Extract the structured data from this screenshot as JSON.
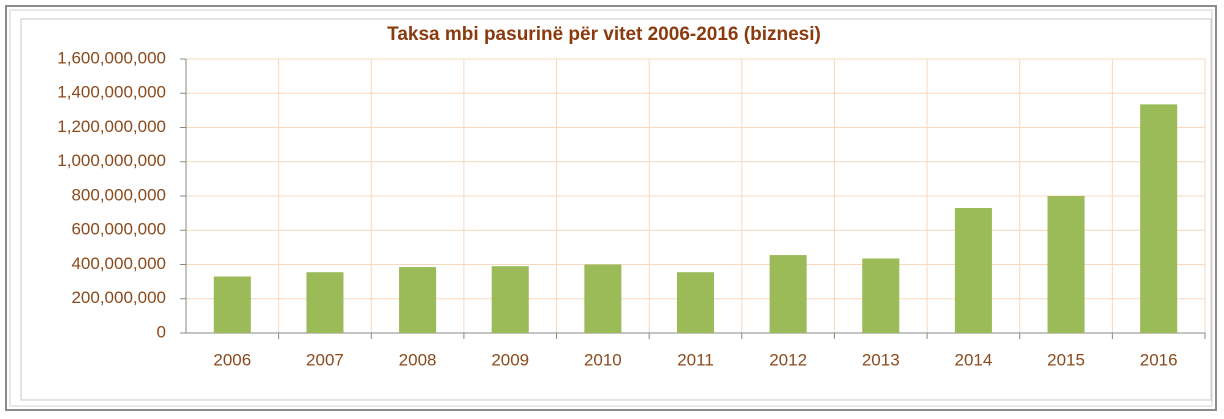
{
  "chart_data": {
    "type": "bar",
    "title": "Taksa mbi pasurinë për vitet 2006-2016 (biznesi)",
    "categories": [
      "2006",
      "2007",
      "2008",
      "2009",
      "2010",
      "2011",
      "2012",
      "2013",
      "2014",
      "2015",
      "2016"
    ],
    "values": [
      330000000,
      355000000,
      385000000,
      390000000,
      400000000,
      355000000,
      455000000,
      435000000,
      730000000,
      800000000,
      1335000000
    ],
    "color": "#9bbb59",
    "ylim": [
      0,
      1600000000
    ],
    "yticks": [
      0,
      {
        "value": 200000000,
        "label": "200,000,000"
      },
      {
        "value": 400000000,
        "label": "400,000,000"
      },
      {
        "value": 600000000,
        "label": "600,000,000"
      },
      {
        "value": 800000000,
        "label": "800,000,000"
      },
      {
        "value": 1000000000,
        "label": "1,000,000,000"
      },
      {
        "value": 1200000000,
        "label": "1,200,000,000"
      },
      {
        "value": 1400000000,
        "label": "1,400,000,000"
      },
      {
        "value": 1600000000,
        "label": "1,600,000,000"
      }
    ],
    "grid": true
  }
}
